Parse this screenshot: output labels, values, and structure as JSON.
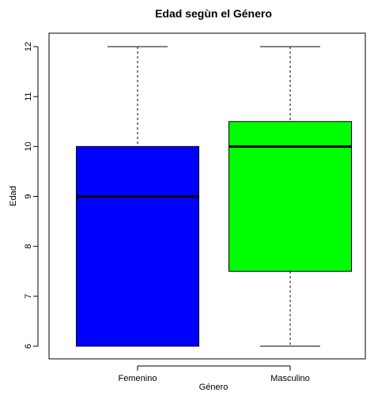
{
  "chart_data": {
    "type": "box",
    "title": "Edad segùn el Género",
    "xlabel": "Género",
    "ylabel": "Edad",
    "categories": [
      "Femenino",
      "Masculino"
    ],
    "boxes": [
      {
        "name": "Femenino",
        "min": 6,
        "q1": 6,
        "median": 9,
        "q3": 10,
        "max": 12,
        "color": "#0000ff"
      },
      {
        "name": "Masculino",
        "min": 6,
        "q1": 7.5,
        "median": 10,
        "q3": 10.5,
        "max": 12,
        "color": "#00ff00"
      }
    ],
    "yticks": [
      6,
      7,
      8,
      9,
      10,
      11,
      12
    ],
    "ylim": [
      5.75,
      12.25
    ],
    "grid": false
  }
}
